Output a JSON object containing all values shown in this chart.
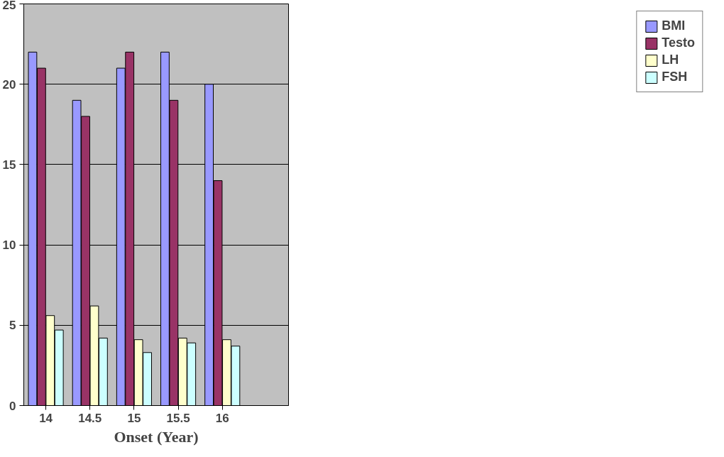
{
  "chart_data": {
    "type": "bar",
    "xlabel": "Onset (Year)",
    "categories": [
      "14",
      "14.5",
      "15",
      "15.5",
      "16",
      null
    ],
    "series": [
      {
        "name": "BMI",
        "color": "#9999ff",
        "values": [
          22,
          19,
          21,
          22,
          20,
          null
        ]
      },
      {
        "name": "Testo",
        "color": "#993366",
        "values": [
          21,
          18,
          22,
          19,
          14,
          null
        ]
      },
      {
        "name": "LH",
        "color": "#ffffcc",
        "values": [
          5.6,
          6.2,
          4.1,
          4.2,
          4.1,
          null
        ]
      },
      {
        "name": "FSH",
        "color": "#ccffff",
        "values": [
          4.7,
          4.2,
          3.3,
          3.9,
          3.7,
          null
        ]
      }
    ],
    "ylim": [
      0,
      25
    ],
    "yticks": [
      0,
      5,
      10,
      15,
      20,
      25
    ],
    "grid": "y",
    "legend": "right"
  }
}
